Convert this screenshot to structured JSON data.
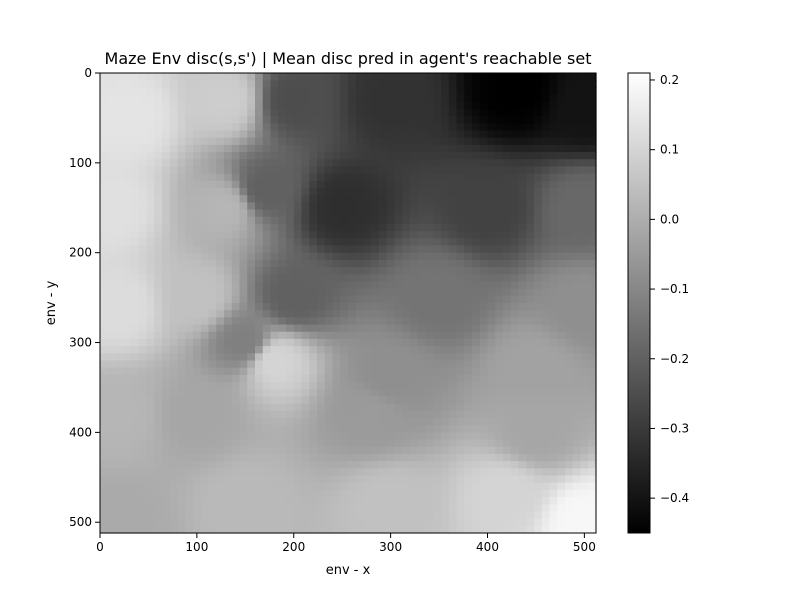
{
  "chart_data": {
    "type": "heatmap",
    "title": "Maze Env disc(s,s') | Mean disc pred in agent's reachable set",
    "xlabel": "env - x",
    "ylabel": "env - y",
    "xlim": [
      0,
      512
    ],
    "ylim": [
      512,
      0
    ],
    "x_ticks": [
      0,
      100,
      200,
      300,
      400,
      500
    ],
    "y_ticks": [
      0,
      100,
      200,
      300,
      400,
      500
    ],
    "colormap": "gray",
    "colorbar": {
      "range": [
        -0.45,
        0.21
      ],
      "ticks": [
        0.2,
        0.1,
        0.0,
        -0.1,
        -0.2,
        -0.3,
        -0.4
      ],
      "tick_labels": [
        "0.2",
        "0.1",
        "0.0",
        "−0.1",
        "−0.2",
        "−0.3",
        "−0.4"
      ]
    },
    "grid": false,
    "sample_points": [
      {
        "x": 30,
        "y": 50,
        "v": 0.14
      },
      {
        "x": 130,
        "y": 30,
        "v": 0.08
      },
      {
        "x": 200,
        "y": 30,
        "v": -0.25
      },
      {
        "x": 300,
        "y": 30,
        "v": -0.32
      },
      {
        "x": 430,
        "y": 20,
        "v": -0.45
      },
      {
        "x": 500,
        "y": 40,
        "v": -0.4
      },
      {
        "x": 10,
        "y": 150,
        "v": 0.13
      },
      {
        "x": 130,
        "y": 150,
        "v": 0.02
      },
      {
        "x": 170,
        "y": 130,
        "v": -0.2
      },
      {
        "x": 250,
        "y": 150,
        "v": -0.33
      },
      {
        "x": 400,
        "y": 150,
        "v": -0.28
      },
      {
        "x": 500,
        "y": 150,
        "v": -0.18
      },
      {
        "x": 20,
        "y": 260,
        "v": 0.12
      },
      {
        "x": 100,
        "y": 250,
        "v": 0.05
      },
      {
        "x": 200,
        "y": 250,
        "v": -0.2
      },
      {
        "x": 350,
        "y": 250,
        "v": -0.15
      },
      {
        "x": 500,
        "y": 260,
        "v": -0.08
      },
      {
        "x": 150,
        "y": 300,
        "v": -0.12
      },
      {
        "x": 180,
        "y": 320,
        "v": 0.1
      },
      {
        "x": 300,
        "y": 340,
        "v": -0.08
      },
      {
        "x": 450,
        "y": 330,
        "v": -0.03
      },
      {
        "x": 20,
        "y": 380,
        "v": 0.02
      },
      {
        "x": 100,
        "y": 380,
        "v": -0.02
      },
      {
        "x": 280,
        "y": 380,
        "v": -0.05
      },
      {
        "x": 450,
        "y": 400,
        "v": -0.02
      },
      {
        "x": 20,
        "y": 500,
        "v": -0.01
      },
      {
        "x": 150,
        "y": 480,
        "v": 0.03
      },
      {
        "x": 300,
        "y": 480,
        "v": 0.05
      },
      {
        "x": 420,
        "y": 470,
        "v": 0.1
      },
      {
        "x": 500,
        "y": 500,
        "v": 0.19
      }
    ]
  }
}
